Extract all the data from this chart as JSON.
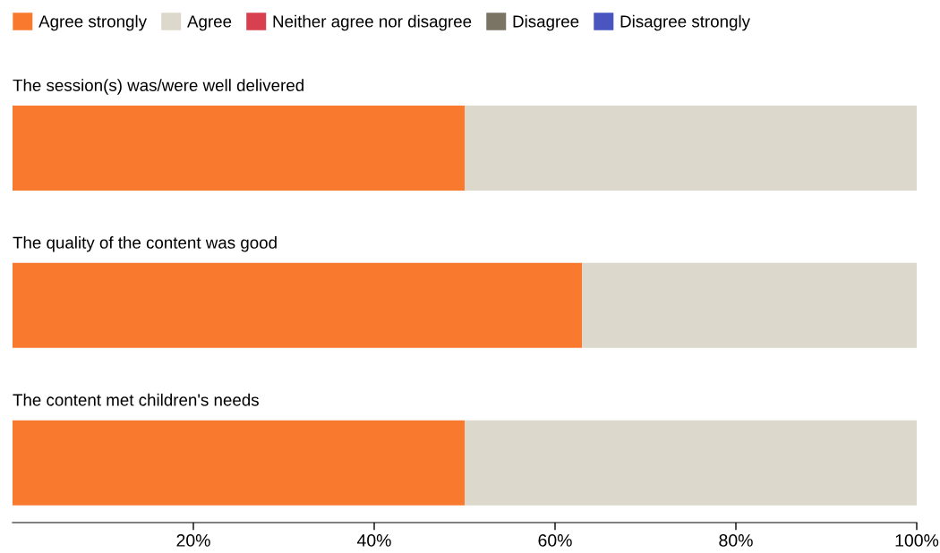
{
  "chart_data": {
    "type": "bar",
    "orientation": "horizontal",
    "stacked": true,
    "categories": [
      "The session(s) was/were well delivered",
      "The quality of the content was good",
      "The content met children's needs"
    ],
    "series": [
      {
        "name": "Agree strongly",
        "color": "#f97a2e",
        "values": [
          50,
          63,
          50
        ]
      },
      {
        "name": "Agree",
        "color": "#dcd8cc",
        "values": [
          50,
          37,
          50
        ]
      },
      {
        "name": "Neither agree nor disagree",
        "color": "#d9404f",
        "values": [
          0,
          0,
          0
        ]
      },
      {
        "name": "Disagree",
        "color": "#7a7464",
        "values": [
          0,
          0,
          0
        ]
      },
      {
        "name": "Disagree strongly",
        "color": "#4a55c0",
        "values": [
          0,
          0,
          0
        ]
      }
    ],
    "xlim": [
      0,
      100
    ],
    "xticks": [
      {
        "value": 20,
        "label": "20%"
      },
      {
        "value": 40,
        "label": "40%"
      },
      {
        "value": 60,
        "label": "60%"
      },
      {
        "value": 80,
        "label": "80%"
      },
      {
        "value": 100,
        "label": "100%"
      }
    ],
    "legend": "top left",
    "grid": false
  }
}
